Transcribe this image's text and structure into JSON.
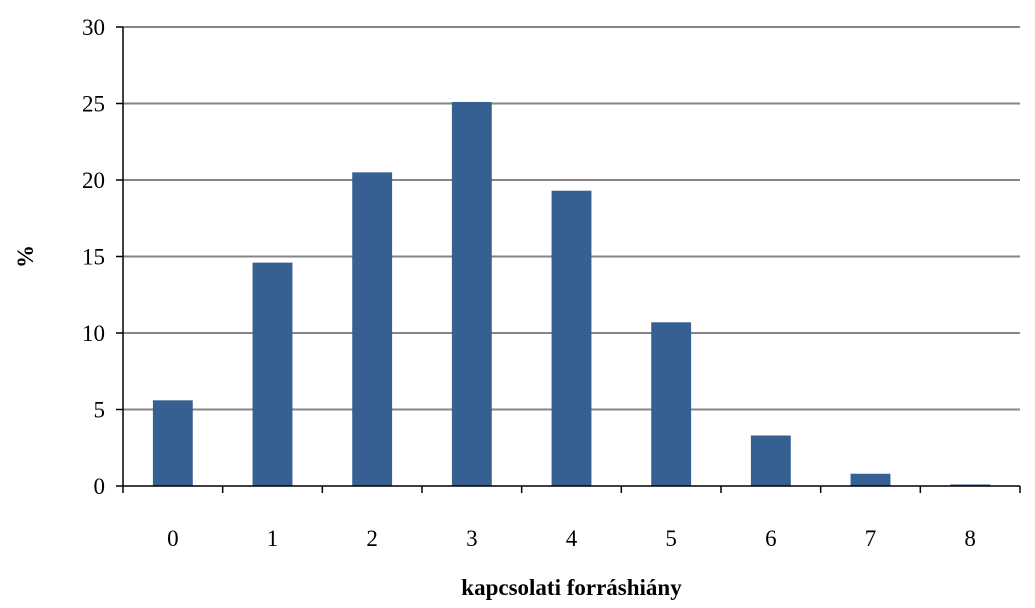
{
  "chart_data": {
    "type": "bar",
    "title": "",
    "xlabel": "kapcsolati forráshiány",
    "ylabel": "%",
    "categories": [
      "0",
      "1",
      "2",
      "3",
      "4",
      "5",
      "6",
      "7",
      "8"
    ],
    "values": [
      5.6,
      14.6,
      20.5,
      25.1,
      19.3,
      10.7,
      3.3,
      0.8,
      0.1
    ],
    "ylim": [
      0,
      30
    ],
    "yticks": [
      "0",
      "5",
      "10",
      "15",
      "20",
      "25",
      "30"
    ],
    "grid": true,
    "legend": "none",
    "colors": {
      "bar": "#376092",
      "grid": "#868686",
      "axis": "#000000"
    }
  }
}
